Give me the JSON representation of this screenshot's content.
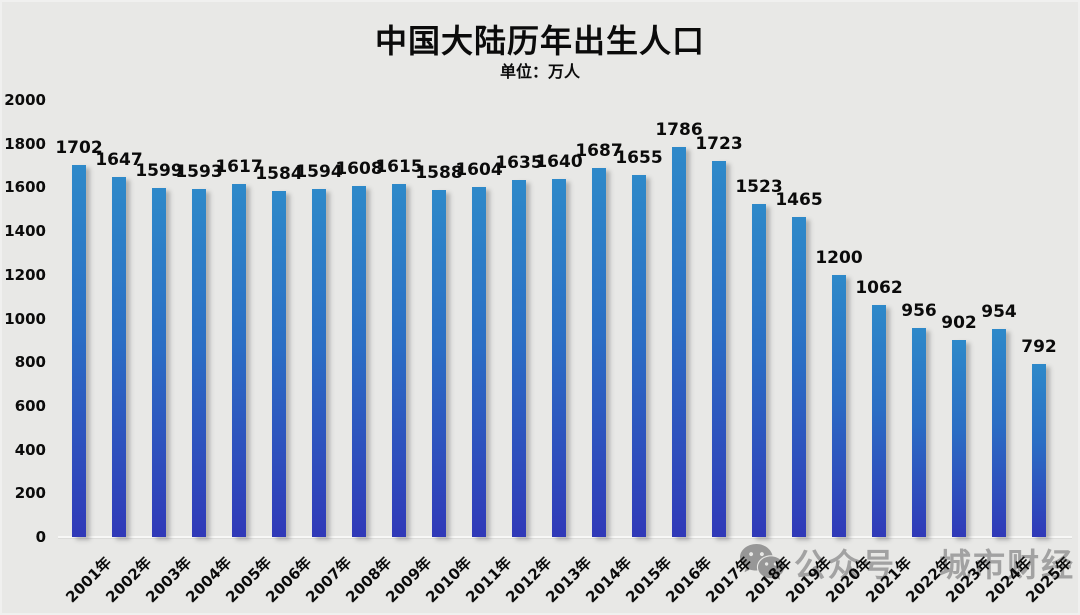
{
  "title": "中国大陆历年出生人口",
  "subtitle": "单位：万人",
  "watermark": {
    "icon": "wechat-icon",
    "text": "公众号 城市财经"
  },
  "colors": {
    "background": "#e8e8e6",
    "bar_top": "#2e89c9",
    "bar_bottom": "#3039b8",
    "label": "#0b0b0b",
    "watermark": "#9b9b9b"
  },
  "chart_data": {
    "type": "bar",
    "title": "中国大陆历年出生人口",
    "unit_label": "单位：万人",
    "categories": [
      "2001年",
      "2002年",
      "2003年",
      "2004年",
      "2005年",
      "2006年",
      "2007年",
      "2008年",
      "2009年",
      "2010年",
      "2011年",
      "2012年",
      "2013年",
      "2014年",
      "2015年",
      "2016年",
      "2017年",
      "2018年",
      "2019年",
      "2020年",
      "2021年",
      "2022年",
      "2023年",
      "2024年",
      "2025年"
    ],
    "values": [
      1702,
      1647,
      1599,
      1593,
      1617,
      1584,
      1594,
      1608,
      1615,
      1588,
      1604,
      1635,
      1640,
      1687,
      1655,
      1786,
      1723,
      1523,
      1465,
      1200,
      1062,
      956,
      902,
      954,
      792
    ],
    "ylim": [
      0,
      2000
    ],
    "yticks": [
      0,
      200,
      400,
      600,
      800,
      1000,
      1200,
      1400,
      1600,
      1800,
      2000
    ],
    "xlabel": "",
    "ylabel": "",
    "grid": false,
    "legend": "none",
    "data_labels": true
  }
}
